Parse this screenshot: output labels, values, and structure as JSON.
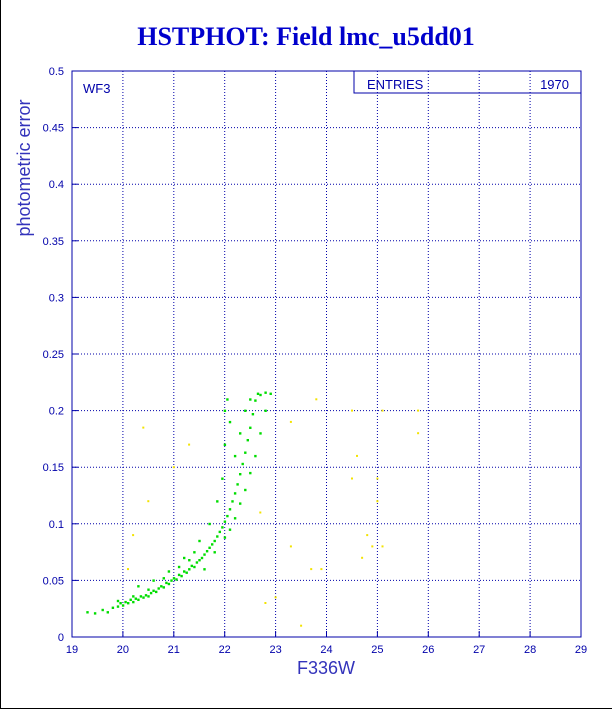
{
  "page": {
    "title": "HSTPHOT: Field lmc_u5dd01",
    "colors": {
      "title": "#0000cc",
      "axis": "#0000aa",
      "grid": "#0000aa",
      "ylabel": "#3333bb",
      "points_main": "#00dd00",
      "points_outlier": "#f3e300"
    }
  },
  "chart_data": {
    "type": "scatter",
    "title": "HSTPHOT: Field lmc_u5dd01",
    "xlabel": "F336W",
    "ylabel": "photometric error",
    "xlim": [
      19,
      29
    ],
    "ylim": [
      0,
      0.5
    ],
    "xticks": [
      "19",
      "20",
      "21",
      "22",
      "23",
      "24",
      "25",
      "26",
      "27",
      "28",
      "29"
    ],
    "yticks": [
      "0",
      "0.05",
      "0.1",
      "0.15",
      "0.2",
      "0.25",
      "0.3",
      "0.35",
      "0.4",
      "0.45",
      "0.5"
    ],
    "grid": true,
    "panel_label": "WF3",
    "stats_box": {
      "label": "ENTRIES",
      "value": "1970"
    },
    "series": [
      {
        "color": "#00dd00",
        "points": [
          [
            19.3,
            0.022
          ],
          [
            19.45,
            0.021
          ],
          [
            19.6,
            0.024
          ],
          [
            19.7,
            0.022
          ],
          [
            19.8,
            0.026
          ],
          [
            19.9,
            0.027
          ],
          [
            19.95,
            0.03
          ],
          [
            20.0,
            0.028
          ],
          [
            20.05,
            0.031
          ],
          [
            20.1,
            0.03
          ],
          [
            20.15,
            0.033
          ],
          [
            20.2,
            0.031
          ],
          [
            20.25,
            0.034
          ],
          [
            20.3,
            0.033
          ],
          [
            20.35,
            0.036
          ],
          [
            20.4,
            0.035
          ],
          [
            20.45,
            0.037
          ],
          [
            20.5,
            0.036
          ],
          [
            20.55,
            0.039
          ],
          [
            20.6,
            0.041
          ],
          [
            20.65,
            0.04
          ],
          [
            20.7,
            0.043
          ],
          [
            20.75,
            0.045
          ],
          [
            20.8,
            0.044
          ],
          [
            20.85,
            0.048
          ],
          [
            20.9,
            0.047
          ],
          [
            20.95,
            0.05
          ],
          [
            21.0,
            0.052
          ],
          [
            21.05,
            0.051
          ],
          [
            21.1,
            0.055
          ],
          [
            21.15,
            0.054
          ],
          [
            21.2,
            0.058
          ],
          [
            21.25,
            0.057
          ],
          [
            21.3,
            0.06
          ],
          [
            21.35,
            0.063
          ],
          [
            21.4,
            0.062
          ],
          [
            21.45,
            0.066
          ],
          [
            21.5,
            0.068
          ],
          [
            21.55,
            0.07
          ],
          [
            21.6,
            0.073
          ],
          [
            21.65,
            0.076
          ],
          [
            21.7,
            0.079
          ],
          [
            21.75,
            0.082
          ],
          [
            21.8,
            0.085
          ],
          [
            21.85,
            0.089
          ],
          [
            21.9,
            0.093
          ],
          [
            21.95,
            0.097
          ],
          [
            22.0,
            0.102
          ],
          [
            22.05,
            0.107
          ],
          [
            22.1,
            0.113
          ],
          [
            22.15,
            0.12
          ],
          [
            22.2,
            0.127
          ],
          [
            22.25,
            0.135
          ],
          [
            22.3,
            0.144
          ],
          [
            22.35,
            0.153
          ],
          [
            22.4,
            0.163
          ],
          [
            22.45,
            0.174
          ],
          [
            22.5,
            0.185
          ],
          [
            22.55,
            0.197
          ],
          [
            22.6,
            0.209
          ],
          [
            22.65,
            0.215
          ],
          [
            22.7,
            0.214
          ],
          [
            22.8,
            0.216
          ],
          [
            22.9,
            0.215
          ],
          [
            20.3,
            0.045
          ],
          [
            20.6,
            0.05
          ],
          [
            20.9,
            0.058
          ],
          [
            21.2,
            0.07
          ],
          [
            21.5,
            0.085
          ],
          [
            21.7,
            0.1
          ],
          [
            21.85,
            0.12
          ],
          [
            21.95,
            0.14
          ],
          [
            22.0,
            0.17
          ],
          [
            22.0,
            0.2
          ],
          [
            22.05,
            0.21
          ],
          [
            22.1,
            0.19
          ],
          [
            22.2,
            0.16
          ],
          [
            22.3,
            0.18
          ],
          [
            22.4,
            0.2
          ],
          [
            22.5,
            0.21
          ],
          [
            21.6,
            0.06
          ],
          [
            21.8,
            0.075
          ],
          [
            22.0,
            0.088
          ],
          [
            22.1,
            0.095
          ],
          [
            22.2,
            0.105
          ],
          [
            22.3,
            0.118
          ],
          [
            22.4,
            0.13
          ],
          [
            22.5,
            0.145
          ],
          [
            22.6,
            0.16
          ],
          [
            22.7,
            0.18
          ],
          [
            22.8,
            0.2
          ],
          [
            21.4,
            0.075
          ],
          [
            21.3,
            0.068
          ],
          [
            21.1,
            0.062
          ],
          [
            20.8,
            0.052
          ],
          [
            20.5,
            0.042
          ],
          [
            20.2,
            0.036
          ],
          [
            19.9,
            0.032
          ]
        ]
      },
      {
        "color": "#f3e300",
        "points": [
          [
            20.4,
            0.185
          ],
          [
            21.3,
            0.17
          ],
          [
            20.5,
            0.12
          ],
          [
            20.2,
            0.09
          ],
          [
            20.1,
            0.06
          ],
          [
            21.0,
            0.15
          ],
          [
            23.3,
            0.19
          ],
          [
            23.8,
            0.21
          ],
          [
            24.5,
            0.2
          ],
          [
            25.1,
            0.2
          ],
          [
            25.8,
            0.2
          ],
          [
            25.8,
            0.18
          ],
          [
            24.6,
            0.16
          ],
          [
            24.5,
            0.14
          ],
          [
            25.0,
            0.14
          ],
          [
            25.0,
            0.12
          ],
          [
            24.8,
            0.09
          ],
          [
            25.1,
            0.08
          ],
          [
            23.3,
            0.08
          ],
          [
            22.7,
            0.11
          ],
          [
            23.5,
            0.01
          ],
          [
            23.0,
            0.035
          ],
          [
            22.8,
            0.03
          ],
          [
            23.7,
            0.06
          ],
          [
            23.9,
            0.06
          ],
          [
            24.7,
            0.07
          ],
          [
            24.9,
            0.08
          ]
        ]
      }
    ]
  }
}
